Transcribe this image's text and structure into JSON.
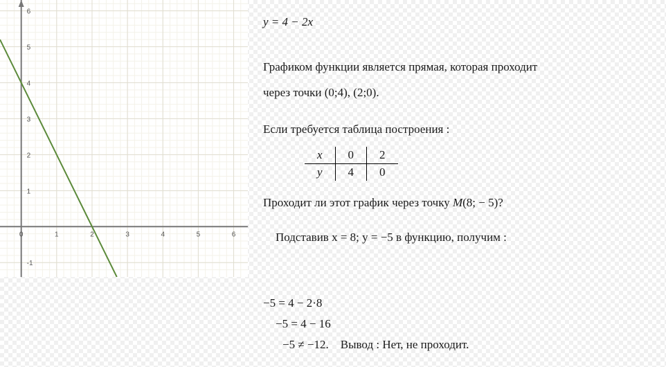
{
  "equation": "y = 4 − 2x",
  "desc_line1": "Графиком функции является прямая, которая проходит",
  "desc_line2_prefix": "через точки ",
  "point1": "(0;4)",
  "point2": "(2;0)",
  "table_intro": "Если требуется таблица построения :",
  "table": {
    "head_x": "x",
    "head_y": "y",
    "x_vals": [
      "0",
      "2"
    ],
    "y_vals": [
      "4",
      "0"
    ]
  },
  "question_prefix": "Проходит ли этот график через точку ",
  "question_point_label": "M",
  "question_point": "(8; − 5)?",
  "substitution": "Подставив x = 8; y = −5 в функцию, получим :",
  "calc_line1": "−5 = 4 − 2·8",
  "calc_line2": "−5 = 4 − 16",
  "calc_line3_expr": "−5 ≠ −12.",
  "calc_line3_concl": "Вывод :  Нет, не проходит.",
  "chart": {
    "type": "line",
    "xlim": [
      -0.6,
      6.4
    ],
    "ylim": [
      -1.4,
      6.3
    ],
    "xtick_step": 1,
    "ytick_step": 1,
    "minor_grid_divisions": 5,
    "background_color": "#ffffff",
    "minor_grid_color": "#f4f2e9",
    "major_grid_color": "#e0ddd0",
    "axis_color": "#000000",
    "axis_thick_color": "#777777",
    "axis_thick_width": 2,
    "line_color": "#5b8a3a",
    "line_width": 2,
    "line_points": [
      [
        -0.6,
        5.2
      ],
      [
        2.7,
        -1.4
      ]
    ],
    "label_font_size": 10,
    "label_color": "#555555"
  }
}
